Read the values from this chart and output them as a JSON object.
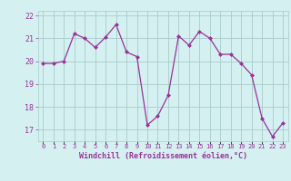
{
  "x": [
    0,
    1,
    2,
    3,
    4,
    5,
    6,
    7,
    8,
    9,
    10,
    11,
    12,
    13,
    14,
    15,
    16,
    17,
    18,
    19,
    20,
    21,
    22,
    23
  ],
  "y": [
    19.9,
    19.9,
    20.0,
    21.2,
    21.0,
    20.6,
    21.05,
    21.6,
    20.4,
    20.2,
    17.2,
    17.6,
    18.5,
    21.1,
    20.7,
    21.3,
    21.0,
    20.3,
    20.3,
    19.9,
    19.4,
    17.5,
    16.7,
    17.3
  ],
  "line_color": "#993399",
  "marker_color": "#993399",
  "bg_color": "#d4f0f0",
  "grid_color": "#aacccc",
  "xlabel": "Windchill (Refroidissement éolien,°C)",
  "xlabel_color": "#993399",
  "tick_color": "#993399",
  "ylim": [
    16.5,
    22.2
  ],
  "xlim": [
    -0.5,
    23.5
  ],
  "yticks": [
    17,
    18,
    19,
    20,
    21,
    22
  ],
  "xticks": [
    0,
    1,
    2,
    3,
    4,
    5,
    6,
    7,
    8,
    9,
    10,
    11,
    12,
    13,
    14,
    15,
    16,
    17,
    18,
    19,
    20,
    21,
    22,
    23
  ],
  "xtick_labels": [
    "0",
    "1",
    "2",
    "3",
    "4",
    "5",
    "6",
    "7",
    "8",
    "9",
    "10",
    "11",
    "12",
    "13",
    "14",
    "15",
    "16",
    "17",
    "18",
    "19",
    "20",
    "21",
    "22",
    "23"
  ]
}
